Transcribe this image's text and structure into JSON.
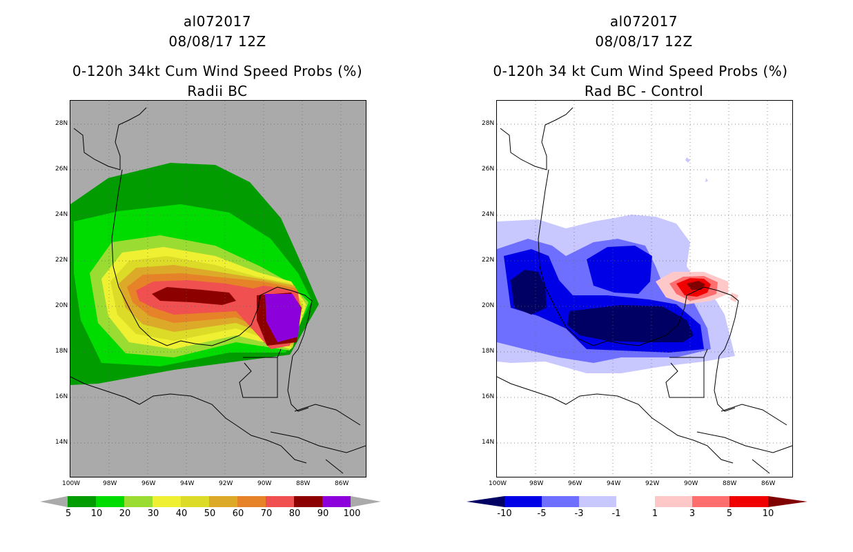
{
  "left_panel": {
    "title_line1": "al072017",
    "title_line2": "08/08/17 12Z",
    "title_line3": "0-120h 34kt Cum Wind Speed Probs (%)",
    "title_line4": "Radii BC",
    "colorbar": {
      "labels": [
        "5",
        "10",
        "20",
        "30",
        "40",
        "50",
        "60",
        "70",
        "80",
        "90",
        "100"
      ],
      "colors": [
        "#009c00",
        "#00dc00",
        "#9adc32",
        "#f0f032",
        "#dcdc28",
        "#dcaa28",
        "#e68228",
        "#f05050",
        "#8c0000",
        "#8c00dc"
      ],
      "end_color": "#aaaaaa"
    }
  },
  "right_panel": {
    "title_line1": "al072017",
    "title_line2": "08/08/17 12Z",
    "title_line3": "0-120h 34 kt Cum Wind Speed Probs (%)",
    "title_line4": "Rad BC - Control",
    "colorbar": {
      "labels": [
        "-10",
        "-5",
        "-3",
        "-1",
        "1",
        "3",
        "5",
        "10"
      ],
      "colors": [
        "#0000e6",
        "#6e6eff",
        "#c8c8ff",
        "#ffffff",
        "#ffc8c8",
        "#ff6e6e",
        "#f00000"
      ],
      "low_end_color": "#000064",
      "high_end_color": "#800000"
    }
  },
  "axes": {
    "lat_labels": [
      "28N",
      "26N",
      "24N",
      "22N",
      "20N",
      "18N",
      "16N",
      "14N"
    ],
    "lon_labels": [
      "100W",
      "98W",
      "96W",
      "94W",
      "92W",
      "90W",
      "88W",
      "86W"
    ]
  },
  "colors": {
    "background_gray": "#aaaaaa",
    "grid": "#888888",
    "coast": "#000000"
  }
}
